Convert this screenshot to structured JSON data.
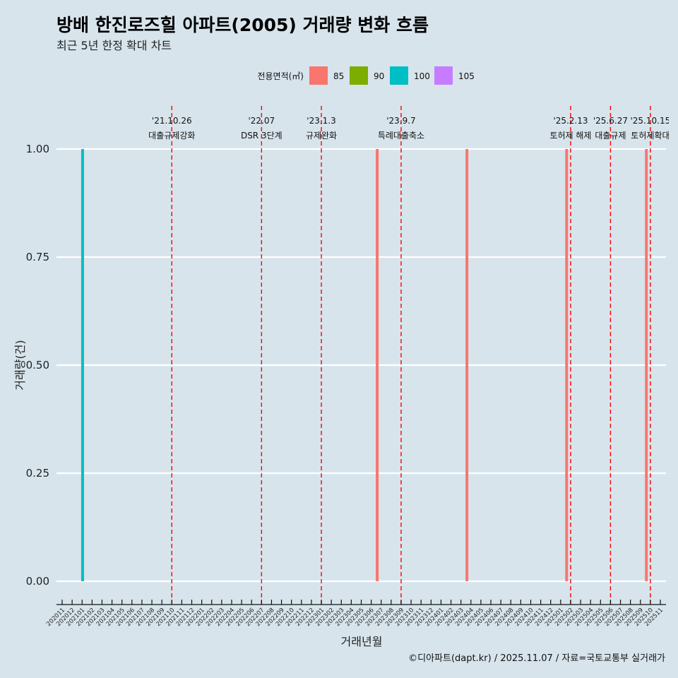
{
  "chart_data": {
    "type": "bar",
    "title": "방배 한진로즈힐 아파트(2005) 거래량 변화 흐름",
    "subtitle": "최근 5년 한정 확대 차트",
    "xlabel": "거래년월",
    "ylabel": "거래량(건)",
    "caption": "©디아파트(dapt.kr) / 2025.11.07 / 자료=국토교통부 실거래가",
    "ylim": [
      0,
      1
    ],
    "yticks": [
      "0.00",
      "0.25",
      "0.50",
      "0.75",
      "1.00"
    ],
    "x_categories": [
      "202011",
      "202012",
      "202101",
      "202102",
      "202103",
      "202104",
      "202105",
      "202106",
      "202107",
      "202108",
      "202109",
      "202110",
      "202111",
      "202112",
      "202201",
      "202202",
      "202203",
      "202204",
      "202205",
      "202206",
      "202207",
      "202208",
      "202209",
      "202210",
      "202211",
      "202212",
      "202301",
      "202302",
      "202303",
      "202304",
      "202305",
      "202306",
      "202307",
      "202308",
      "202309",
      "202310",
      "202311",
      "202312",
      "202401",
      "202402",
      "202403",
      "202404",
      "202405",
      "202406",
      "202407",
      "202408",
      "202409",
      "202410",
      "202411",
      "202412",
      "202501",
      "202502",
      "202503",
      "202504",
      "202505",
      "202506",
      "202507",
      "202508",
      "202509",
      "202510",
      "202511"
    ],
    "legend": {
      "title": "전용면적(㎡)",
      "placement": "top",
      "entries": [
        {
          "label": "85",
          "color": "#F8766D"
        },
        {
          "label": "90",
          "color": "#7CAE00"
        },
        {
          "label": "100",
          "color": "#00BFC4"
        },
        {
          "label": "105",
          "color": "#C77CFF"
        }
      ]
    },
    "bars": [
      {
        "month": "202101",
        "offset": 0.05,
        "area": "100",
        "value": 1
      },
      {
        "month": "202306",
        "offset": 0.6,
        "area": "85",
        "value": 1
      },
      {
        "month": "202403",
        "offset": 0.6,
        "area": "85",
        "value": 1
      },
      {
        "month": "202501",
        "offset": 0.6,
        "area": "85",
        "value": 1
      },
      {
        "month": "202509",
        "offset": 0.6,
        "area": "85",
        "value": 1
      }
    ],
    "events": [
      {
        "month": "202110",
        "date": "'21.10.26",
        "label": "대출규제강화"
      },
      {
        "month": "202207",
        "date": "'22.07",
        "label": "DSR 3단계"
      },
      {
        "month": "202301",
        "date": "'23.1.3",
        "label": "규제완화"
      },
      {
        "month": "202309",
        "date": "'23.9.7",
        "label": "특례대출축소"
      },
      {
        "month": "202502",
        "date": "'25.2.13",
        "label": "토허제 해제"
      },
      {
        "month": "202506",
        "date": "'25.6.27",
        "label": "대출규제"
      },
      {
        "month": "202510",
        "date": "'25.10.15",
        "label": "토허제확대"
      }
    ]
  }
}
